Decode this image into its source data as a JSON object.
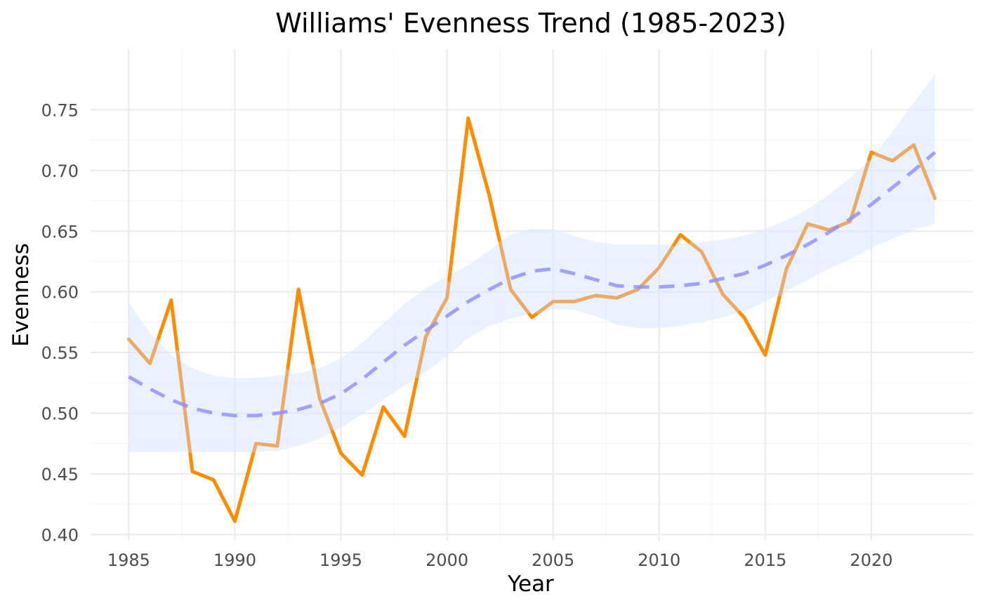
{
  "chart_data": {
    "type": "line",
    "title": "Williams' Evenness Trend (1985-2023)",
    "xlabel": "Year",
    "ylabel": "Evenness",
    "xlim": [
      1983.2,
      2024.8
    ],
    "ylim": [
      0.395,
      0.8
    ],
    "x_ticks": [
      1985,
      1990,
      1995,
      2000,
      2005,
      2010,
      2015,
      2020
    ],
    "y_ticks": [
      0.4,
      0.45,
      0.5,
      0.55,
      0.6,
      0.65,
      0.7,
      0.75
    ],
    "y_tick_labels": [
      "0.40",
      "0.45",
      "0.50",
      "0.55",
      "0.60",
      "0.65",
      "0.70",
      "0.75"
    ],
    "grid": true,
    "legend": "none",
    "x": [
      1985,
      1986,
      1987,
      1988,
      1989,
      1990,
      1991,
      1992,
      1993,
      1994,
      1995,
      1996,
      1997,
      1998,
      1999,
      2000,
      2001,
      2002,
      2003,
      2004,
      2005,
      2006,
      2007,
      2008,
      2009,
      2010,
      2011,
      2012,
      2013,
      2014,
      2015,
      2016,
      2017,
      2018,
      2019,
      2020,
      2021,
      2022,
      2023
    ],
    "series": [
      {
        "kind": "observed",
        "values": [
          0.561,
          0.541,
          0.593,
          0.452,
          0.445,
          0.411,
          0.475,
          0.473,
          0.602,
          0.512,
          0.467,
          0.449,
          0.505,
          0.481,
          0.563,
          0.595,
          0.743,
          0.679,
          0.602,
          0.579,
          0.592,
          0.592,
          0.597,
          0.595,
          0.602,
          0.62,
          0.647,
          0.633,
          0.598,
          0.579,
          0.548,
          0.619,
          0.656,
          0.651,
          0.658,
          0.715,
          0.708,
          0.721,
          0.677
        ],
        "color": "#ff8c00",
        "muted_color": "#ecaa64"
      },
      {
        "kind": "smooth",
        "linestyle": "dashed",
        "values": [
          0.53,
          0.52,
          0.511,
          0.504,
          0.5,
          0.498,
          0.498,
          0.5,
          0.503,
          0.508,
          0.516,
          0.528,
          0.542,
          0.556,
          0.568,
          0.58,
          0.592,
          0.602,
          0.611,
          0.617,
          0.619,
          0.615,
          0.61,
          0.605,
          0.604,
          0.604,
          0.605,
          0.607,
          0.611,
          0.615,
          0.622,
          0.63,
          0.639,
          0.649,
          0.66,
          0.672,
          0.686,
          0.7,
          0.715
        ],
        "color": "#8c8cff"
      },
      {
        "kind": "confidence-band",
        "upper": [
          0.591,
          0.566,
          0.548,
          0.537,
          0.531,
          0.529,
          0.529,
          0.531,
          0.533,
          0.537,
          0.545,
          0.558,
          0.574,
          0.59,
          0.603,
          0.613,
          0.622,
          0.634,
          0.647,
          0.652,
          0.652,
          0.646,
          0.641,
          0.639,
          0.639,
          0.639,
          0.64,
          0.641,
          0.643,
          0.646,
          0.652,
          0.659,
          0.668,
          0.68,
          0.694,
          0.71,
          0.732,
          0.756,
          0.779
        ],
        "lower": [
          0.468,
          0.468,
          0.468,
          0.468,
          0.468,
          0.468,
          0.468,
          0.469,
          0.473,
          0.479,
          0.488,
          0.499,
          0.511,
          0.523,
          0.534,
          0.547,
          0.562,
          0.572,
          0.578,
          0.582,
          0.586,
          0.585,
          0.58,
          0.573,
          0.57,
          0.57,
          0.572,
          0.575,
          0.579,
          0.584,
          0.592,
          0.601,
          0.61,
          0.619,
          0.627,
          0.636,
          0.644,
          0.651,
          0.656
        ],
        "color": "#dbe9fd"
      }
    ]
  }
}
